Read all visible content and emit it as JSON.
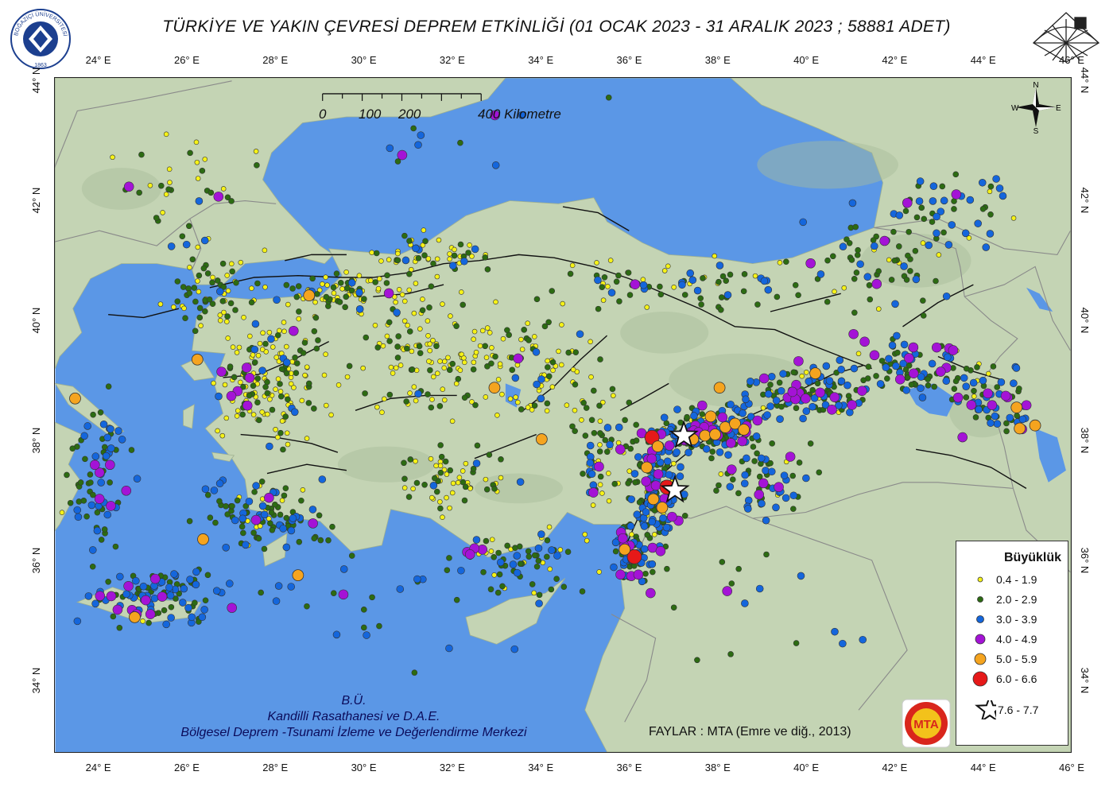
{
  "title": "TÜRKİYE VE YAKIN ÇEVRESİ  DEPREM ETKİNLİĞİ   (01 OCAK 2023 - 31 ARALIK 2023 ; 58881 ADET)",
  "logo_left": {
    "icon": "bogazici-university-seal",
    "text": "BOĞAZİÇİ ÜNİVERSİTESİ",
    "year": "1863"
  },
  "logo_right": {
    "icon": "kandilli-observatory-logo"
  },
  "lon_ticks": [
    {
      "value": 24,
      "label": "24° E"
    },
    {
      "value": 26,
      "label": "26° E"
    },
    {
      "value": 28,
      "label": "28° E"
    },
    {
      "value": 30,
      "label": "30° E"
    },
    {
      "value": 32,
      "label": "32° E"
    },
    {
      "value": 34,
      "label": "34° E"
    },
    {
      "value": 36,
      "label": "36° E"
    },
    {
      "value": 38,
      "label": "38° E"
    },
    {
      "value": 40,
      "label": "40° E"
    },
    {
      "value": 42,
      "label": "42° E"
    },
    {
      "value": 44,
      "label": "44° E"
    },
    {
      "value": 46,
      "label": "46° E"
    }
  ],
  "lat_ticks": [
    {
      "value": 44,
      "label": "44° N"
    },
    {
      "value": 42,
      "label": "42° N"
    },
    {
      "value": 40,
      "label": "40° N"
    },
    {
      "value": 38,
      "label": "38° N"
    },
    {
      "value": 36,
      "label": "36° N"
    },
    {
      "value": 34,
      "label": "34° N"
    }
  ],
  "map_extent": {
    "lon_min": 23.0,
    "lon_max": 46.0,
    "lat_min": 32.8,
    "lat_max": 44.05
  },
  "scale_bar": {
    "labels": [
      {
        "km": 0,
        "text": "0"
      },
      {
        "km": 100,
        "text": "100"
      },
      {
        "km": 200,
        "text": "200"
      },
      {
        "km": 400,
        "text": "400 Kilometre"
      }
    ],
    "max_km": 400
  },
  "compass": {
    "n": "N",
    "s": "S",
    "e": "E",
    "w": "W"
  },
  "credits": {
    "line1": "B.Ü.",
    "line2": "Kandilli Rasathanesi ve D.A.E.",
    "line3": "Bölgesel Deprem -Tsunami İzleme ve Değerlendirme Merkezi"
  },
  "faults_note": "FAYLAR : MTA (Emre ve diğ., 2013)",
  "mta_logo": {
    "icon": "mta-logo",
    "text": "MTA"
  },
  "legend": {
    "title": "Büyüklük",
    "items": [
      {
        "label": "0.4 - 1.9",
        "color": "#f5f218",
        "symbol": "circle",
        "size": 3
      },
      {
        "label": "2.0 - 2.9",
        "color": "#2c6b12",
        "symbol": "circle",
        "size": 3.5
      },
      {
        "label": "3.0 - 3.9",
        "color": "#1466dc",
        "symbol": "circle",
        "size": 4.5
      },
      {
        "label": "4.0 - 4.9",
        "color": "#a413d6",
        "symbol": "circle",
        "size": 6
      },
      {
        "label": "5.0 - 5.9",
        "color": "#f5a41f",
        "symbol": "circle",
        "size": 7
      },
      {
        "label": "6.0 - 6.6",
        "color": "#e61919",
        "symbol": "circle",
        "size": 9
      },
      {
        "label": "7.6 - 7.7",
        "color": "#ffffff",
        "symbol": "star",
        "size": 16
      }
    ]
  },
  "colors": {
    "sea": "#5b97e6",
    "land": "#c4d4b4",
    "land_dark": "#a8bd9a",
    "fault": "#111111",
    "border": "#8a8a8a"
  },
  "mainshocks": [
    {
      "lon": 37.04,
      "lat": 37.17,
      "mag_class": "7.6 - 7.7"
    },
    {
      "lon": 37.24,
      "lat": 38.08,
      "mag_class": "7.6 - 7.7"
    }
  ],
  "large_events": [
    {
      "lon": 36.52,
      "lat": 38.05,
      "mag_class": "6.0 - 6.6"
    },
    {
      "lon": 36.86,
      "lat": 37.22,
      "mag_class": "6.0 - 6.6"
    },
    {
      "lon": 36.12,
      "lat": 36.06,
      "mag_class": "6.0 - 6.6"
    },
    {
      "lon": 37.45,
      "lat": 38.02,
      "mag_class": "5.0 - 5.9"
    },
    {
      "lon": 37.72,
      "lat": 38.08,
      "mag_class": "5.0 - 5.9"
    },
    {
      "lon": 37.95,
      "lat": 38.1,
      "mag_class": "5.0 - 5.9"
    },
    {
      "lon": 38.18,
      "lat": 38.22,
      "mag_class": "5.0 - 5.9"
    },
    {
      "lon": 38.4,
      "lat": 38.28,
      "mag_class": "5.0 - 5.9"
    },
    {
      "lon": 38.6,
      "lat": 38.18,
      "mag_class": "5.0 - 5.9"
    },
    {
      "lon": 37.85,
      "lat": 38.4,
      "mag_class": "5.0 - 5.9"
    },
    {
      "lon": 38.05,
      "lat": 38.88,
      "mag_class": "5.0 - 5.9"
    },
    {
      "lon": 36.65,
      "lat": 37.9,
      "mag_class": "5.0 - 5.9"
    },
    {
      "lon": 36.4,
      "lat": 37.55,
      "mag_class": "5.0 - 5.9"
    },
    {
      "lon": 36.55,
      "lat": 37.02,
      "mag_class": "5.0 - 5.9"
    },
    {
      "lon": 36.75,
      "lat": 36.88,
      "mag_class": "5.0 - 5.9"
    },
    {
      "lon": 35.9,
      "lat": 36.18,
      "mag_class": "5.0 - 5.9"
    },
    {
      "lon": 40.22,
      "lat": 39.12,
      "mag_class": "5.0 - 5.9"
    },
    {
      "lon": 44.78,
      "lat": 38.55,
      "mag_class": "5.0 - 5.9"
    },
    {
      "lon": 44.85,
      "lat": 38.2,
      "mag_class": "5.0 - 5.9"
    },
    {
      "lon": 45.2,
      "lat": 38.25,
      "mag_class": "5.0 - 5.9"
    },
    {
      "lon": 34.02,
      "lat": 38.02,
      "mag_class": "5.0 - 5.9"
    },
    {
      "lon": 32.95,
      "lat": 38.88,
      "mag_class": "5.0 - 5.9"
    },
    {
      "lon": 28.75,
      "lat": 40.42,
      "mag_class": "5.0 - 5.9"
    },
    {
      "lon": 26.22,
      "lat": 39.35,
      "mag_class": "5.0 - 5.9"
    },
    {
      "lon": 23.45,
      "lat": 38.7,
      "mag_class": "5.0 - 5.9"
    },
    {
      "lon": 26.35,
      "lat": 36.35,
      "mag_class": "5.0 - 5.9"
    },
    {
      "lon": 28.5,
      "lat": 35.75,
      "mag_class": "5.0 - 5.9"
    },
    {
      "lon": 24.8,
      "lat": 35.05,
      "mag_class": "5.0 - 5.9"
    }
  ]
}
